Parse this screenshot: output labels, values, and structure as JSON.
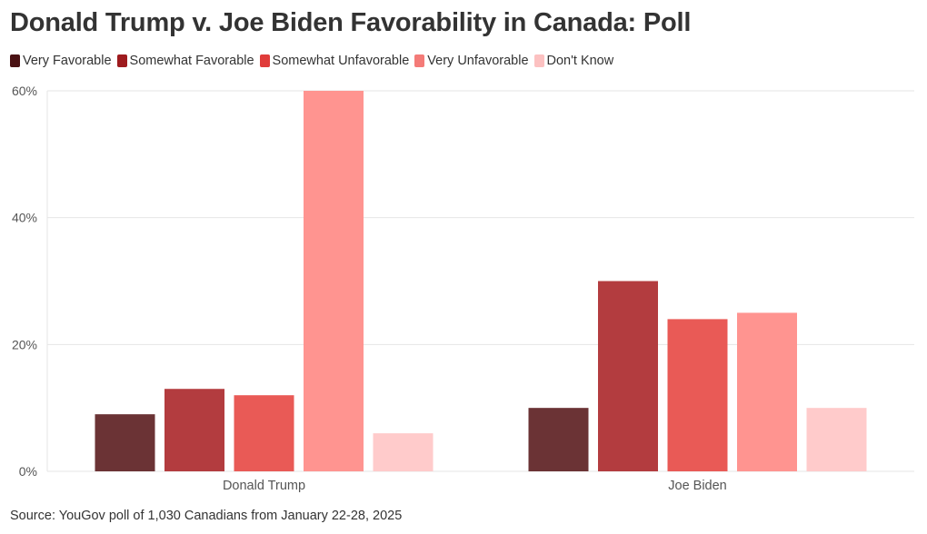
{
  "chart_data": {
    "type": "bar",
    "title": "Donald Trump v. Joe Biden Favorability in Canada: Poll",
    "categories": [
      "Donald Trump",
      "Joe Biden"
    ],
    "series": [
      {
        "name": "Very Favorable",
        "color": "#6b3335",
        "values": [
          9,
          10
        ]
      },
      {
        "name": "Somewhat Favorable",
        "color": "#b33c3f",
        "values": [
          13,
          30
        ]
      },
      {
        "name": "Somewhat Unfavorable",
        "color": "#e95a56",
        "values": [
          12,
          24
        ]
      },
      {
        "name": "Very Unfavorable",
        "color": "#ff9490",
        "values": [
          60,
          25
        ]
      },
      {
        "name": "Don't Know",
        "color": "#ffcbcb",
        "values": [
          6,
          10
        ]
      }
    ],
    "legend_colors": [
      "#4a1214",
      "#9e1b1e",
      "#e03c3a",
      "#f47b78",
      "#fcc1c1"
    ],
    "yticks": [
      "0%",
      "20%",
      "40%",
      "60%"
    ],
    "ytick_values": [
      0,
      20,
      40,
      60
    ],
    "ylim": [
      0,
      60
    ],
    "xlabel": "",
    "ylabel": "",
    "grid": true,
    "legend_position": "top-left"
  },
  "source": "Source: YouGov poll of 1,030 Canadians from January 22-28, 2025"
}
